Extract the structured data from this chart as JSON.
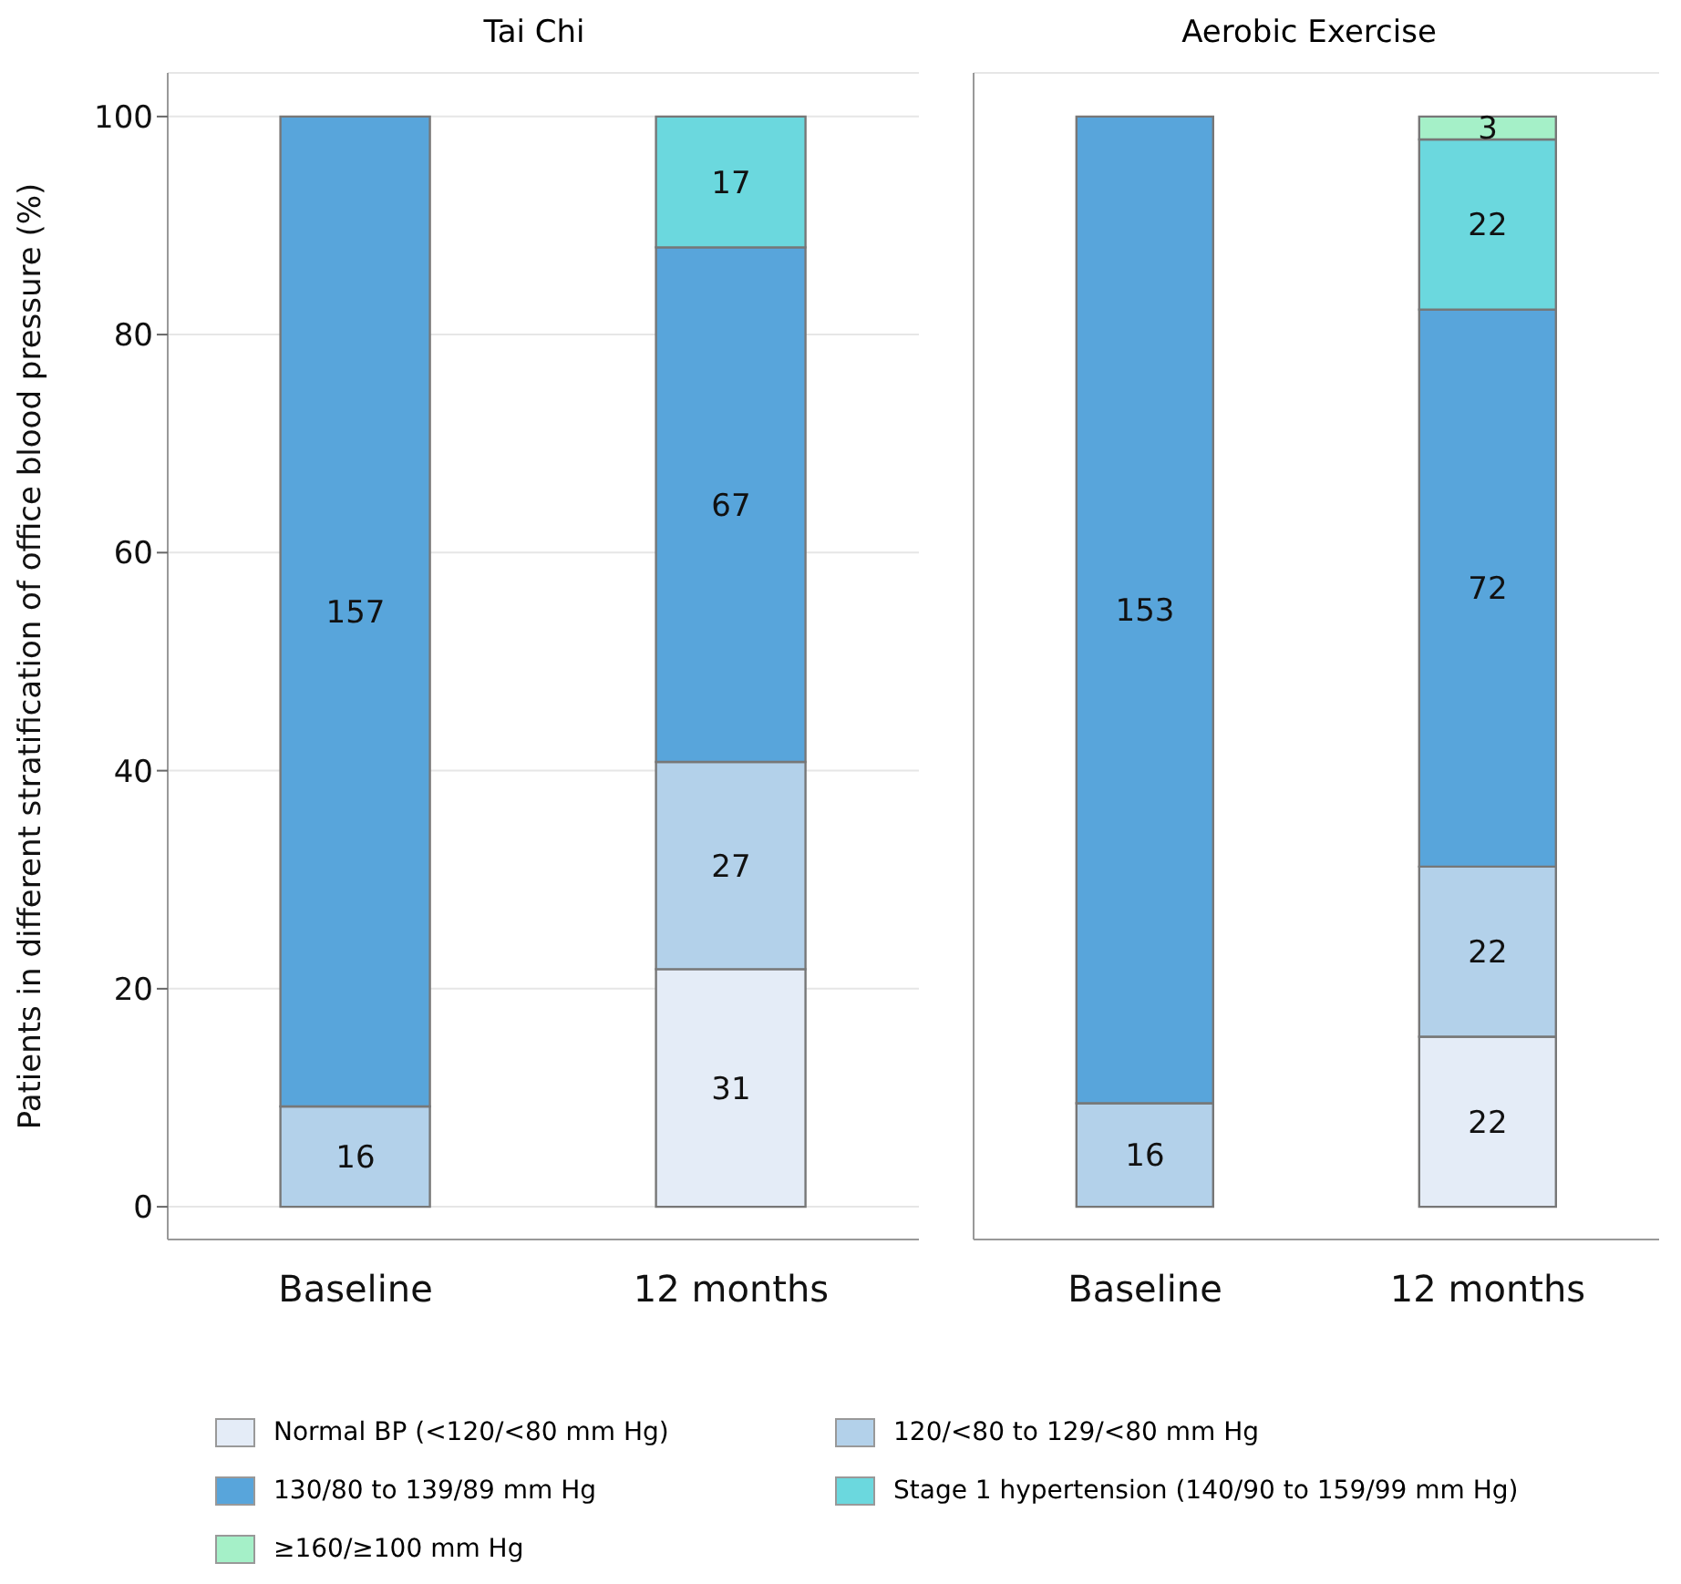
{
  "chart_data": [
    {
      "type": "bar",
      "title": "Tai Chi",
      "ylabel": "Patients in different stratification of office blood pressure (%)",
      "categories": [
        "Baseline",
        "12 months"
      ],
      "stacked": true,
      "ylim": [
        -3,
        104
      ],
      "yticks": [
        0,
        20,
        40,
        60,
        80,
        100
      ],
      "grid": "y",
      "legend": "bottom",
      "series": [
        {
          "name": "Normal BP (<120/<80 mm Hg)",
          "color": "#e4ecf7",
          "values": [
            null,
            21.8
          ]
        },
        {
          "name": "120/<80 to 129/<80 mm Hg",
          "color": "#b3d1ea",
          "values": [
            9.2,
            19.0
          ]
        },
        {
          "name": "130/80 to 139/89 mm Hg",
          "color": "#58a5db",
          "values": [
            90.8,
            47.2
          ]
        },
        {
          "name": "Stage 1 hypertension (140/90 to 159/99 mm Hg)",
          "color": "#6bd8de",
          "values": [
            null,
            12.0
          ]
        }
      ],
      "annotations": [
        "16",
        "157",
        "31",
        "27",
        "67",
        "17"
      ]
    },
    {
      "type": "bar",
      "title": "Aerobic Exercise",
      "categories": [
        "Baseline",
        "12 months"
      ],
      "stacked": true,
      "ylim": [
        -3,
        104
      ],
      "yticks": [
        0,
        20,
        40,
        60,
        80,
        100
      ],
      "grid": "y",
      "tick_labels": "x",
      "legend": "bottom",
      "series": [
        {
          "name": "Normal BP (<120/<80 mm Hg)",
          "color": "#e4ecf7",
          "values": [
            null,
            15.6
          ]
        },
        {
          "name": "120/<80 to 129/<80 mm Hg",
          "color": "#b3d1ea",
          "values": [
            9.5,
            15.6
          ]
        },
        {
          "name": "130/80 to 139/89 mm Hg",
          "color": "#58a5db",
          "values": [
            90.5,
            51.1
          ]
        },
        {
          "name": "Stage 1 hypertension (140/90 to 159/99 mm Hg)",
          "color": "#6bd8de",
          "values": [
            null,
            15.6
          ]
        },
        {
          "name": "≥160/≥100 mm Hg",
          "color": "#a5f0c8",
          "values": [
            null,
            2.1
          ]
        }
      ],
      "annotations": [
        "16",
        "153",
        "22",
        "22",
        "72",
        "22",
        "3"
      ]
    }
  ]
}
